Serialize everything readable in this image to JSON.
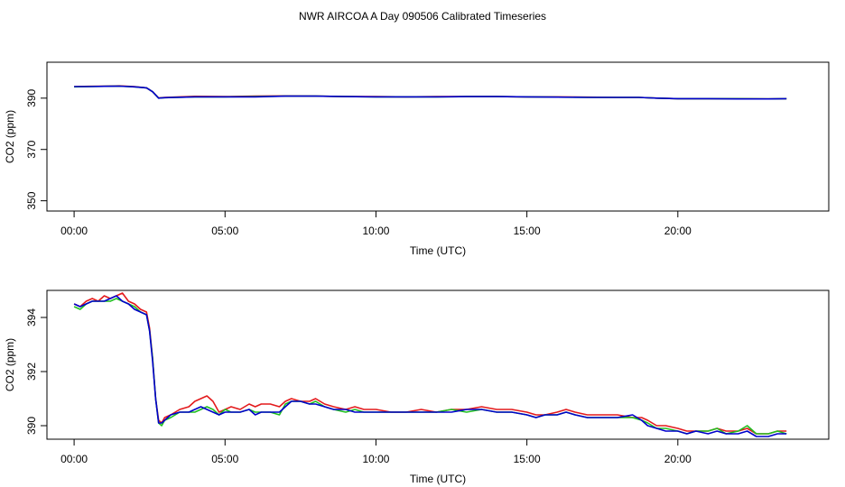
{
  "title": "NWR AIRCOA A  Day 090506  Calibrated Timeseries",
  "colors": {
    "red": "#e31a1c",
    "green": "#1fbf1f",
    "blue": "#0000cc",
    "frame": "#000000"
  },
  "chart_data": [
    {
      "type": "line",
      "xlabel": "Time (UTC)",
      "ylabel": "CO2 (ppm)",
      "xlim": [
        -0.9,
        25
      ],
      "ylim": [
        346,
        404
      ],
      "xticks": [
        0,
        5,
        10,
        15,
        20
      ],
      "xtick_labels": [
        "00:00",
        "05:00",
        "10:00",
        "15:00",
        "20:00"
      ],
      "yticks": [
        350,
        370,
        390
      ],
      "ytick_labels": [
        "350",
        "370",
        "390"
      ],
      "grid": false,
      "series": [
        {
          "color": "red",
          "x": [
            0,
            0.5,
            1,
            1.5,
            2,
            2.4,
            2.6,
            2.8,
            3,
            4,
            5,
            6,
            7,
            8,
            9,
            10,
            11,
            12,
            13,
            14,
            15,
            16,
            17,
            18,
            18.7,
            19.3,
            20,
            21,
            22,
            23,
            23.6
          ],
          "y": [
            394.5,
            394.6,
            394.7,
            394.8,
            394.5,
            394.0,
            392.5,
            390.1,
            390.3,
            390.7,
            390.6,
            390.8,
            390.9,
            390.8,
            390.6,
            390.6,
            390.5,
            390.6,
            390.6,
            390.6,
            390.5,
            390.5,
            390.4,
            390.3,
            390.3,
            390.0,
            389.8,
            389.8,
            389.8,
            389.7,
            389.8
          ]
        },
        {
          "color": "green",
          "x": [
            0,
            0.5,
            1,
            1.5,
            2,
            2.4,
            2.6,
            2.8,
            3,
            4,
            5,
            6,
            7,
            8,
            9,
            10,
            11,
            12,
            13,
            14,
            15,
            16,
            17,
            18,
            18.7,
            19.3,
            20,
            21,
            22,
            23,
            23.6
          ],
          "y": [
            394.4,
            394.5,
            394.6,
            394.7,
            394.4,
            394.0,
            392.5,
            390.0,
            390.2,
            390.5,
            390.5,
            390.6,
            390.8,
            390.8,
            390.6,
            390.5,
            390.5,
            390.5,
            390.6,
            390.6,
            390.5,
            390.4,
            390.3,
            390.3,
            390.3,
            390.0,
            389.8,
            389.8,
            389.8,
            389.7,
            389.8
          ]
        },
        {
          "color": "blue",
          "x": [
            0,
            0.5,
            1,
            1.5,
            2,
            2.4,
            2.6,
            2.8,
            3,
            4,
            5,
            6,
            7,
            8,
            9,
            10,
            11,
            12,
            13,
            14,
            15,
            16,
            17,
            18,
            18.7,
            19.3,
            20,
            21,
            22,
            23,
            23.6
          ],
          "y": [
            394.5,
            394.5,
            394.6,
            394.7,
            394.4,
            394.0,
            392.5,
            390.0,
            390.2,
            390.5,
            390.5,
            390.5,
            390.8,
            390.8,
            390.6,
            390.5,
            390.5,
            390.5,
            390.6,
            390.6,
            390.5,
            390.4,
            390.3,
            390.3,
            390.3,
            390.0,
            389.8,
            389.8,
            389.7,
            389.7,
            389.8
          ]
        }
      ]
    },
    {
      "type": "line",
      "xlabel": "Time (UTC)",
      "ylabel": "CO2 (ppm)",
      "xlim": [
        -0.9,
        25
      ],
      "ylim": [
        389.5,
        395.0
      ],
      "xticks": [
        0,
        5,
        10,
        15,
        20
      ],
      "xtick_labels": [
        "00:00",
        "05:00",
        "10:00",
        "15:00",
        "20:00"
      ],
      "yticks": [
        390,
        392,
        394
      ],
      "ytick_labels": [
        "390",
        "392",
        "394"
      ],
      "grid": false,
      "series": [
        {
          "color": "red",
          "x": [
            0,
            0.2,
            0.4,
            0.6,
            0.8,
            1.0,
            1.2,
            1.4,
            1.6,
            1.8,
            2.0,
            2.2,
            2.4,
            2.5,
            2.6,
            2.7,
            2.8,
            2.9,
            3.0,
            3.2,
            3.5,
            3.8,
            4.0,
            4.2,
            4.4,
            4.6,
            4.8,
            5.0,
            5.2,
            5.5,
            5.8,
            6.0,
            6.2,
            6.5,
            6.8,
            7.0,
            7.2,
            7.5,
            7.8,
            8.0,
            8.3,
            8.6,
            9.0,
            9.3,
            9.6,
            10.0,
            10.5,
            11.0,
            11.5,
            12.0,
            12.5,
            13.0,
            13.5,
            14.0,
            14.5,
            15.0,
            15.3,
            15.6,
            16.0,
            16.3,
            16.6,
            17.0,
            17.5,
            18.0,
            18.5,
            18.8,
            19.0,
            19.3,
            19.6,
            20.0,
            20.3,
            20.6,
            21.0,
            21.3,
            21.6,
            22.0,
            22.3,
            22.6,
            23.0,
            23.3,
            23.6
          ],
          "y": [
            394.5,
            394.4,
            394.6,
            394.7,
            394.6,
            394.8,
            394.7,
            394.8,
            394.9,
            394.6,
            394.5,
            394.3,
            394.2,
            393.6,
            392.5,
            391.0,
            390.2,
            390.1,
            390.3,
            390.4,
            390.6,
            390.7,
            390.9,
            391.0,
            391.1,
            390.9,
            390.5,
            390.6,
            390.7,
            390.6,
            390.8,
            390.7,
            390.8,
            390.8,
            390.7,
            390.9,
            391.0,
            390.9,
            390.9,
            391.0,
            390.8,
            390.7,
            390.6,
            390.7,
            390.6,
            390.6,
            390.5,
            390.5,
            390.6,
            390.5,
            390.6,
            390.6,
            390.7,
            390.6,
            390.6,
            390.5,
            390.4,
            390.4,
            390.5,
            390.6,
            390.5,
            390.4,
            390.4,
            390.4,
            390.3,
            390.3,
            390.2,
            390.0,
            390.0,
            389.9,
            389.8,
            389.8,
            389.8,
            389.9,
            389.8,
            389.8,
            389.9,
            389.7,
            389.7,
            389.8,
            389.8
          ]
        },
        {
          "color": "green",
          "x": [
            0,
            0.2,
            0.4,
            0.6,
            0.8,
            1.0,
            1.2,
            1.4,
            1.6,
            1.8,
            2.0,
            2.2,
            2.4,
            2.5,
            2.6,
            2.7,
            2.8,
            2.9,
            3.0,
            3.2,
            3.5,
            3.8,
            4.0,
            4.2,
            4.4,
            4.6,
            4.8,
            5.0,
            5.2,
            5.5,
            5.8,
            6.0,
            6.2,
            6.5,
            6.8,
            7.0,
            7.2,
            7.5,
            7.8,
            8.0,
            8.3,
            8.6,
            9.0,
            9.3,
            9.6,
            10.0,
            10.5,
            11.0,
            11.5,
            12.0,
            12.5,
            13.0,
            13.5,
            14.0,
            14.5,
            15.0,
            15.3,
            15.6,
            16.0,
            16.3,
            16.6,
            17.0,
            17.5,
            18.0,
            18.5,
            18.8,
            19.0,
            19.3,
            19.6,
            20.0,
            20.3,
            20.6,
            21.0,
            21.3,
            21.6,
            22.0,
            22.3,
            22.6,
            23.0,
            23.3,
            23.6
          ],
          "y": [
            394.4,
            394.3,
            394.5,
            394.6,
            394.6,
            394.6,
            394.6,
            394.7,
            394.6,
            394.5,
            394.4,
            394.2,
            394.1,
            393.5,
            392.5,
            391.0,
            390.1,
            390.0,
            390.2,
            390.3,
            390.5,
            390.5,
            390.5,
            390.6,
            390.7,
            390.6,
            390.4,
            390.6,
            390.5,
            390.5,
            390.6,
            390.5,
            390.5,
            390.5,
            390.4,
            390.8,
            390.9,
            390.9,
            390.8,
            390.9,
            390.7,
            390.6,
            390.5,
            390.6,
            390.5,
            390.5,
            390.5,
            390.5,
            390.5,
            390.5,
            390.6,
            390.5,
            390.6,
            390.5,
            390.5,
            390.4,
            390.3,
            390.4,
            390.4,
            390.5,
            390.4,
            390.3,
            390.3,
            390.3,
            390.3,
            390.2,
            390.1,
            389.9,
            389.9,
            389.8,
            389.7,
            389.8,
            389.8,
            389.9,
            389.7,
            389.8,
            390.0,
            389.7,
            389.7,
            389.8,
            389.7
          ]
        },
        {
          "color": "blue",
          "x": [
            0,
            0.2,
            0.4,
            0.6,
            0.8,
            1.0,
            1.2,
            1.4,
            1.6,
            1.8,
            2.0,
            2.2,
            2.4,
            2.5,
            2.6,
            2.7,
            2.8,
            2.9,
            3.0,
            3.2,
            3.5,
            3.8,
            4.0,
            4.2,
            4.4,
            4.6,
            4.8,
            5.0,
            5.2,
            5.5,
            5.8,
            6.0,
            6.2,
            6.5,
            6.8,
            7.0,
            7.2,
            7.5,
            7.8,
            8.0,
            8.3,
            8.6,
            9.0,
            9.3,
            9.6,
            10.0,
            10.5,
            11.0,
            11.5,
            12.0,
            12.5,
            13.0,
            13.5,
            14.0,
            14.5,
            15.0,
            15.3,
            15.6,
            16.0,
            16.3,
            16.6,
            17.0,
            17.5,
            18.0,
            18.5,
            18.8,
            19.0,
            19.3,
            19.6,
            20.0,
            20.3,
            20.6,
            21.0,
            21.3,
            21.6,
            22.0,
            22.3,
            22.6,
            23.0,
            23.3,
            23.6
          ],
          "y": [
            394.5,
            394.4,
            394.5,
            394.6,
            394.6,
            394.6,
            394.7,
            394.8,
            394.6,
            394.5,
            394.3,
            394.2,
            394.1,
            393.5,
            392.4,
            391.0,
            390.1,
            390.1,
            390.2,
            390.4,
            390.5,
            390.5,
            390.6,
            390.7,
            390.6,
            390.5,
            390.4,
            390.5,
            390.5,
            390.5,
            390.6,
            390.4,
            390.5,
            390.5,
            390.5,
            390.7,
            390.9,
            390.9,
            390.8,
            390.8,
            390.7,
            390.6,
            390.6,
            390.5,
            390.5,
            390.5,
            390.5,
            390.5,
            390.5,
            390.5,
            390.5,
            390.6,
            390.6,
            390.5,
            390.5,
            390.4,
            390.3,
            390.4,
            390.4,
            390.5,
            390.4,
            390.3,
            390.3,
            390.3,
            390.4,
            390.2,
            390.0,
            389.9,
            389.8,
            389.8,
            389.7,
            389.8,
            389.7,
            389.8,
            389.7,
            389.7,
            389.8,
            389.6,
            389.6,
            389.7,
            389.7
          ]
        }
      ]
    }
  ]
}
